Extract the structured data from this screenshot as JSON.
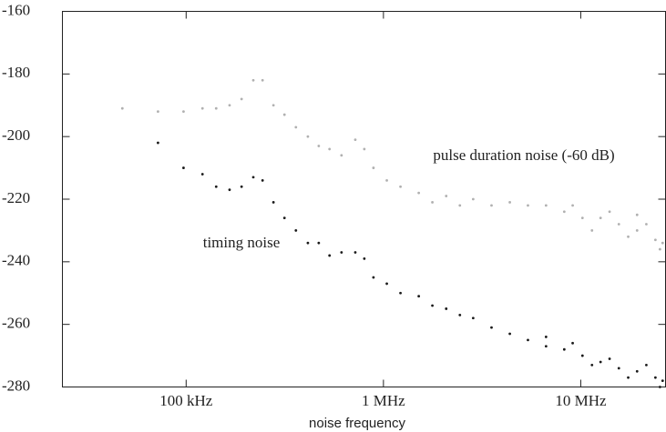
{
  "chart_data": {
    "type": "scatter",
    "xlabel": "noise frequency",
    "xscale": "log",
    "xlim": [
      23600,
      26900000
    ],
    "xticks": [
      {
        "value": 100000,
        "label": "100 kHz"
      },
      {
        "value": 1000000,
        "label": "1 MHz"
      },
      {
        "value": 10000000,
        "label": "10 MHz"
      }
    ],
    "ylim": [
      -280,
      -160
    ],
    "yticks": [
      -280,
      -260,
      -240,
      -220,
      -200,
      -180,
      -160
    ],
    "series": [
      {
        "name": "pulse duration noise (-60 dB)",
        "color": "#b0b0b0",
        "x": [
          47500,
          72000,
          97000,
          121000,
          142000,
          166000,
          191000,
          219000,
          244000,
          277000,
          315000,
          360000,
          414000,
          470000,
          533000,
          613000,
          720000,
          800000,
          890000,
          1040000,
          1220000,
          1510000,
          1770000,
          2080000,
          2440000,
          2850000,
          3530000,
          4370000,
          5400000,
          6670000,
          8250000,
          10200000,
          12600000,
          15600000,
          19300000,
          23900000,
          26000000,
          9100000,
          11400000,
          14000000,
          17400000,
          21500000,
          25200000,
          19300000
        ],
        "values": [
          -191,
          -192,
          -192,
          -191,
          -191,
          -190,
          -188,
          -182,
          -182,
          -190,
          -193,
          -197,
          -200,
          -203,
          -204,
          -206,
          -201,
          -204,
          -210,
          -214,
          -216,
          -218,
          -221,
          -219,
          -222,
          -220,
          -222,
          -221,
          -222,
          -222,
          -224,
          -226,
          -226,
          -228,
          -230,
          -233,
          -234,
          -222,
          -230,
          -224,
          -232,
          -228,
          -236,
          -225
        ]
      },
      {
        "name": "timing noise",
        "color": "#1a1a1a",
        "x": [
          72000,
          97000,
          121000,
          142000,
          166000,
          191000,
          219000,
          244000,
          277000,
          315000,
          360000,
          414000,
          470000,
          533000,
          613000,
          720000,
          800000,
          890000,
          1040000,
          1220000,
          1510000,
          1770000,
          2080000,
          2440000,
          2850000,
          3530000,
          4370000,
          5400000,
          6670000,
          8250000,
          10200000,
          12600000,
          15600000,
          19300000,
          23900000,
          26000000,
          9100000,
          11400000,
          14000000,
          17400000,
          21500000,
          25200000,
          6670000
        ],
        "values": [
          -202,
          -210,
          -212,
          -216,
          -217,
          -216,
          -213,
          -214,
          -221,
          -226,
          -230,
          -234,
          -234,
          -238,
          -237,
          -237,
          -239,
          -245,
          -247,
          -250,
          -251,
          -254,
          -255,
          -257,
          -258,
          -261,
          -263,
          -265,
          -267,
          -268,
          -270,
          -272,
          -274,
          -275,
          -277,
          -278,
          -266,
          -273,
          -271,
          -277,
          -273,
          -280,
          -264
        ]
      }
    ]
  }
}
